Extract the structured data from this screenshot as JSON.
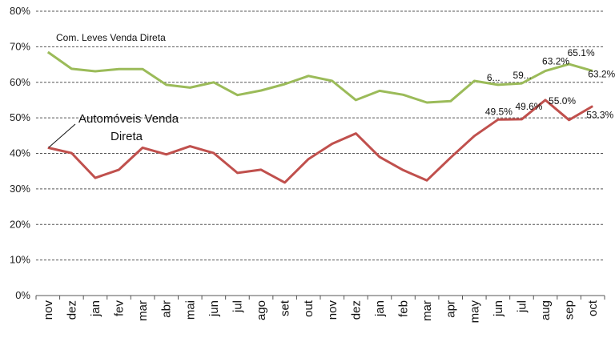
{
  "chart_data": {
    "type": "line",
    "categories": [
      "nov",
      "dez",
      "jan",
      "fev",
      "mar",
      "abr",
      "mai",
      "jun",
      "jul",
      "ago",
      "set",
      "out",
      "nov",
      "dez",
      "jan",
      "feb",
      "mar",
      "apr",
      "may",
      "jun",
      "jul",
      "aug",
      "sep",
      "oct"
    ],
    "ylim": [
      0,
      80
    ],
    "yticks": [
      "0%",
      "10%",
      "20%",
      "30%",
      "40%",
      "50%",
      "60%",
      "70%",
      "80%"
    ],
    "grid": true,
    "series": [
      {
        "name": "Com. Leves Venda Direta",
        "color": "#9bbb59",
        "values": [
          68.5,
          63.8,
          63.1,
          63.7,
          63.7,
          59.3,
          58.5,
          60.0,
          56.4,
          57.7,
          59.5,
          61.8,
          60.4,
          55.0,
          57.6,
          56.5,
          54.3,
          54.7,
          60.4,
          59.3,
          59.7,
          63.2,
          65.1,
          63.2
        ],
        "data_labels": [
          {
            "index": 19,
            "text": "6..."
          },
          {
            "index": 20,
            "text": "59..."
          },
          {
            "index": 21,
            "text": "63.2%"
          },
          {
            "index": 22,
            "text": "65.1%"
          },
          {
            "index": 23,
            "text": "63.2%"
          }
        ]
      },
      {
        "name": "Automóveis Venda Direta",
        "color": "#c0504d",
        "values": [
          41.6,
          40.1,
          33.1,
          35.4,
          41.6,
          39.7,
          42.0,
          40.1,
          34.5,
          35.4,
          31.8,
          38.4,
          42.7,
          45.6,
          39.0,
          35.3,
          32.4,
          38.8,
          44.9,
          49.5,
          49.6,
          55.0,
          49.4,
          53.3
        ],
        "data_labels": [
          {
            "index": 19,
            "text": "49.5%"
          },
          {
            "index": 20,
            "text": "49.6%"
          },
          {
            "index": 21,
            "text": "55.0%"
          },
          {
            "index": 23,
            "text": "53.3%"
          }
        ]
      }
    ],
    "annotations": {
      "green_series_label": "Com. Leves Venda Direta",
      "red_series_label_line1": "Automóveis Venda",
      "red_series_label_line2": "Direta"
    }
  }
}
